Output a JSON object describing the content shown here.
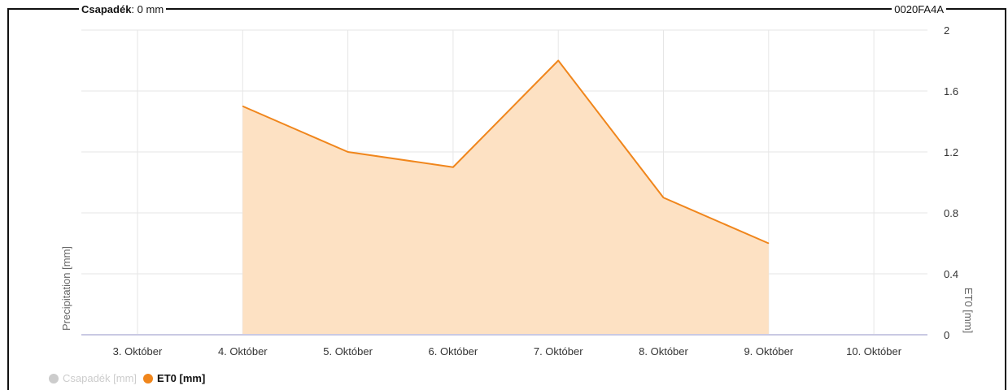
{
  "tooltip": {
    "key": "Csapadék",
    "value": ": 0 mm"
  },
  "device_id": "0020FA4A",
  "chart_data": {
    "type": "area",
    "categories": [
      "3. Október",
      "4. Október",
      "5. Október",
      "6. Október",
      "7. Október",
      "8. Október",
      "9. Október",
      "10. Október"
    ],
    "series": [
      {
        "name": "Csapadék [mm]",
        "values": [
          null,
          null,
          null,
          null,
          null,
          null,
          null,
          null
        ],
        "visible": false,
        "color": "#cccccc"
      },
      {
        "name": "ET0 [mm]",
        "values": [
          null,
          1.5,
          1.2,
          1.1,
          1.8,
          0.9,
          0.6,
          null
        ],
        "visible": true,
        "color": "#f0861c",
        "fill": "#fde1c3"
      }
    ],
    "y_left_label": "Precipitation [mm]",
    "y_right_label": "ET0 [mm]",
    "y_right_ticks": [
      "0",
      "0.4",
      "0.8",
      "1.2",
      "1.6",
      "2"
    ],
    "y_right_range": [
      0,
      2
    ],
    "grid": true,
    "legend_position": "bottom-left"
  }
}
